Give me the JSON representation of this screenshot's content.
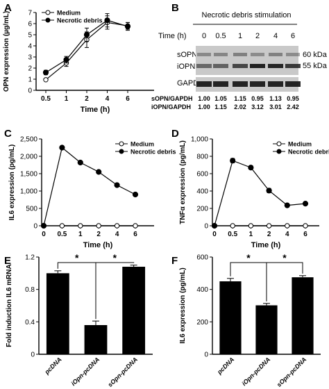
{
  "panel_letters": [
    "A",
    "B",
    "C",
    "D",
    "E",
    "F"
  ],
  "chart_data": [
    {
      "panel": "A",
      "type": "line",
      "xlabel": "Time (h)",
      "ylabel": "OPN expression (µg/mL)",
      "x": [
        0.5,
        1,
        2,
        4,
        6
      ],
      "xticks": [
        "0.5",
        "1",
        "2",
        "4",
        "6"
      ],
      "ylim": [
        0,
        7
      ],
      "yticks": [
        0,
        1,
        2,
        3,
        4,
        5,
        6,
        7
      ],
      "legend_position": "top-left",
      "series": [
        {
          "name": "Medium",
          "marker": "open-circle",
          "values": [
            0.95,
            2.45,
            4.55,
            6.1,
            5.8
          ],
          "errors": [
            0.1,
            0.3,
            0.7,
            0.6,
            0.3
          ]
        },
        {
          "name": "Necrotic debris",
          "marker": "filled-circle",
          "values": [
            1.6,
            2.75,
            5.0,
            6.3,
            5.75
          ],
          "errors": [
            0.2,
            0.3,
            0.6,
            0.6,
            0.35
          ]
        }
      ]
    },
    {
      "panel": "C",
      "type": "line",
      "xlabel": "Time (h)",
      "ylabel": "IL6 expression (pg/mL)",
      "x": [
        0,
        0.5,
        1,
        2,
        4,
        6
      ],
      "xticks": [
        "0",
        "0.5",
        "1",
        "2",
        "4",
        "6"
      ],
      "ylim": [
        0,
        2500
      ],
      "yticks": [
        "0",
        "500",
        "1,000",
        "1,500",
        "2,000",
        "2,500"
      ],
      "legend_position": "top-right",
      "series": [
        {
          "name": "Medium",
          "marker": "open-circle",
          "x": [
            0.5,
            1,
            2,
            4,
            6
          ],
          "values": [
            0,
            0,
            0,
            0,
            0
          ]
        },
        {
          "name": "Necrotic debris",
          "marker": "filled-circle",
          "x": [
            0,
            0.5,
            1,
            2,
            4,
            6
          ],
          "values": [
            0,
            2250,
            1820,
            1550,
            1170,
            900
          ]
        }
      ]
    },
    {
      "panel": "D",
      "type": "line",
      "xlabel": "Time (h)",
      "ylabel": "TNFα expression (pg/mL)",
      "x": [
        0,
        0.5,
        1,
        2,
        4,
        6
      ],
      "xticks": [
        "0",
        "0.5",
        "1",
        "2",
        "4",
        "6"
      ],
      "ylim": [
        0,
        1000
      ],
      "yticks": [
        "0",
        "200",
        "400",
        "600",
        "800",
        "1,000"
      ],
      "legend_position": "top-right",
      "series": [
        {
          "name": "Medium",
          "marker": "open-circle",
          "x": [
            0.5,
            1,
            2,
            4,
            6
          ],
          "values": [
            0,
            0,
            0,
            0,
            0
          ]
        },
        {
          "name": "Necrotic debris",
          "marker": "filled-circle",
          "x": [
            0,
            0.5,
            1,
            2,
            4,
            6
          ],
          "values": [
            0,
            750,
            670,
            405,
            235,
            255
          ],
          "errors": [
            0,
            25,
            20,
            25,
            10,
            10
          ]
        }
      ]
    },
    {
      "panel": "E",
      "type": "bar",
      "ylabel": "Fold induction IL6 mRNA",
      "categories": [
        "pcDNA",
        "iOpn-pcDNA",
        "sOpn-pcDNA"
      ],
      "values": [
        1.0,
        0.36,
        1.08
      ],
      "errors": [
        0.03,
        0.05,
        0.02
      ],
      "ylim": [
        0,
        1.2
      ],
      "yticks": [
        "0",
        "0.4",
        "0.8",
        "1.2"
      ],
      "significance": [
        "*",
        "*"
      ]
    },
    {
      "panel": "F",
      "type": "bar",
      "ylabel": "IL6 expression (pg/mL)",
      "categories": [
        "pcDNA",
        "iOpn-pcDNA",
        "sOpn-pcDNA"
      ],
      "values": [
        450,
        302,
        475
      ],
      "errors": [
        18,
        12,
        10
      ],
      "ylim": [
        0,
        600
      ],
      "yticks": [
        "0",
        "200",
        "400",
        "600"
      ],
      "significance": [
        "*",
        "*"
      ]
    }
  ],
  "blot": {
    "title": "Necrotic debris stimulation",
    "time_label": "Time (h)",
    "time_points": [
      "0",
      "0.5",
      "1",
      "2",
      "4",
      "6"
    ],
    "row_labels": [
      "sOPN",
      "iOPN",
      "GAPDH"
    ],
    "weight_labels": [
      "60 kDa",
      "55 kDa"
    ],
    "sOPN_ratio_label": "sOPN/GAPDH",
    "sOPN_ratios": [
      "1.00",
      "1.05",
      "1.15",
      "0.95",
      "1.13",
      "0.95"
    ],
    "iOPN_ratio_label": "iOPN/GAPDH",
    "iOPN_ratios": [
      "1.00",
      "1.15",
      "2.02",
      "3.12",
      "3.01",
      "2.42"
    ]
  }
}
